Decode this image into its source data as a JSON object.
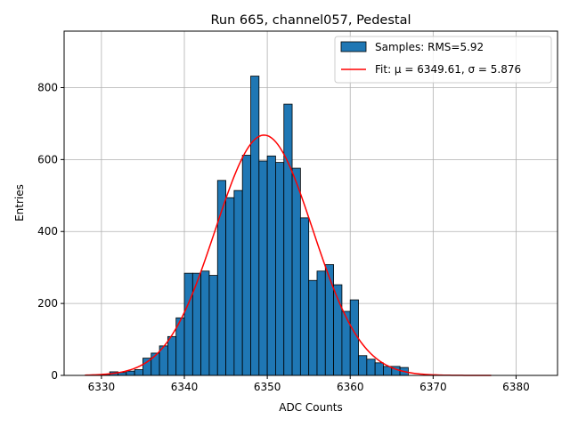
{
  "chart_data": {
    "type": "bar",
    "title": "Run 665, channel057, Pedestal",
    "xlabel": "ADC Counts",
    "ylabel": "Entries",
    "xlim": [
      6325.5,
      6385
    ],
    "ylim": [
      0,
      957
    ],
    "x_ticks": [
      6330,
      6340,
      6350,
      6360,
      6370,
      6380
    ],
    "y_ticks": [
      0,
      200,
      400,
      600,
      800
    ],
    "grid": true,
    "legend_position": "upper right",
    "bin_width": 1,
    "bin_starts": [
      6330,
      6331,
      6332,
      6333,
      6334,
      6335,
      6336,
      6337,
      6338,
      6339,
      6340,
      6341,
      6342,
      6343,
      6344,
      6345,
      6346,
      6347,
      6348,
      6349,
      6350,
      6351,
      6352,
      6353,
      6354,
      6355,
      6356,
      6357,
      6358,
      6359,
      6360,
      6361,
      6362,
      6363,
      6364,
      6365,
      6366
    ],
    "counts": [
      3,
      10,
      8,
      12,
      16,
      48,
      62,
      82,
      108,
      160,
      284,
      284,
      290,
      278,
      542,
      494,
      514,
      612,
      832,
      596,
      610,
      592,
      754,
      576,
      438,
      264,
      290,
      308,
      252,
      178,
      210,
      55,
      45,
      35,
      25,
      25,
      22
    ],
    "series": [
      {
        "name": "Samples: RMS=5.92",
        "kind": "histogram",
        "color": "#1f77b4"
      },
      {
        "name": "Fit: μ = 6349.61, σ = 5.876",
        "kind": "line",
        "color": "#ff0000",
        "mu": 6349.61,
        "sigma": 5.876,
        "amplitude": 668,
        "x_range": [
          6328,
          6377
        ]
      }
    ]
  }
}
